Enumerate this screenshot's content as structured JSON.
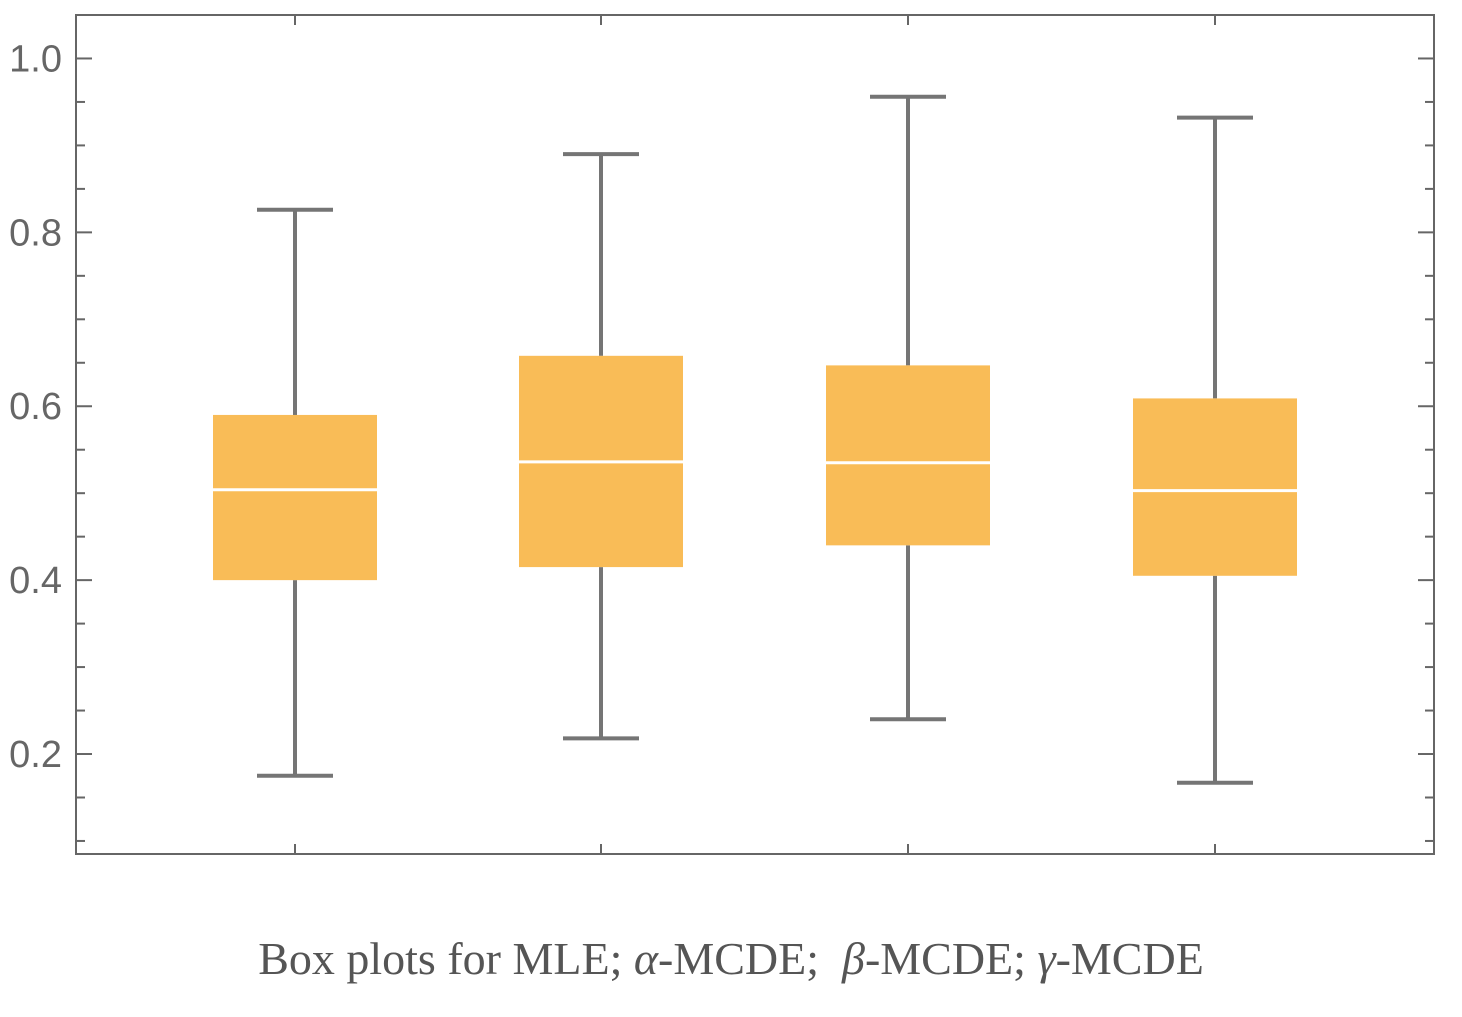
{
  "chart_data": {
    "type": "box",
    "title": "",
    "xlabel": "",
    "ylabel": "",
    "ylim": [
      0.085,
      1.05
    ],
    "yticks": [
      0.2,
      0.4,
      0.6,
      0.8,
      1.0
    ],
    "ytick_labels": [
      "0.2",
      "0.4",
      "0.6",
      "0.8",
      "1.0"
    ],
    "grid": false,
    "boxes": [
      {
        "whisker_low": 0.175,
        "q1": 0.4,
        "median": 0.504,
        "q3": 0.59,
        "whisker_high": 0.826
      },
      {
        "whisker_low": 0.218,
        "q1": 0.415,
        "median": 0.536,
        "q3": 0.658,
        "whisker_high": 0.89
      },
      {
        "whisker_low": 0.24,
        "q1": 0.44,
        "median": 0.535,
        "q3": 0.647,
        "whisker_high": 0.956
      },
      {
        "whisker_low": 0.167,
        "q1": 0.405,
        "median": 0.503,
        "q3": 0.609,
        "whisker_high": 0.932
      }
    ],
    "caption": {
      "prefix": "Box plots for MLE; ",
      "alpha": "α",
      "alpha_rest": "-MCDE;  ",
      "beta": "β",
      "beta_rest": "-MCDE; ",
      "gamma": "γ",
      "gamma_rest": "-MCDE"
    }
  },
  "colors": {
    "box_fill": "#f9bc57",
    "median_line": "#ffffff",
    "whisker": "#757575",
    "frame": "#666666",
    "tick_label": "#666666"
  }
}
